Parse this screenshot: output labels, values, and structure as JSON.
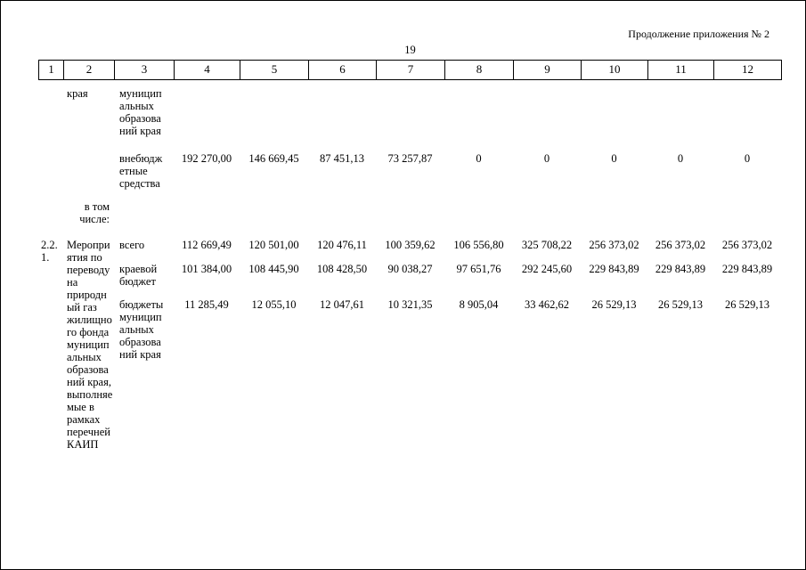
{
  "page": {
    "header_note": "Продолжение приложения № 2",
    "page_number": "19"
  },
  "table": {
    "columns": [
      "1",
      "2",
      "3",
      "4",
      "5",
      "6",
      "7",
      "8",
      "9",
      "10",
      "11",
      "12"
    ],
    "row_a": {
      "col2": "края",
      "col3": "муницип\nальных\nобразова\nний края"
    },
    "row_b": {
      "col3": "внебюдж\nетные\nсредства",
      "values": [
        "192 270,00",
        "146 669,45",
        "87 451,13",
        "73 257,87",
        "0",
        "0",
        "0",
        "0",
        "0"
      ]
    },
    "row_c": {
      "col2": "в том\nчисле:"
    },
    "row_d": {
      "col1": "2.2.\n1.",
      "col2": "Меропри\nятия по\nпереводу\nна\nприродн\nый газ\nжилищно\nго фонда\nмуницип\nальных\nобразова\nний края,\nвыполняе\nмые в\nрамках\nперечней\nКАИП",
      "subrows": [
        {
          "label": "всего",
          "values": [
            "112 669,49",
            "120 501,00",
            "120 476,11",
            "100 359,62",
            "106 556,80",
            "325 708,22",
            "256 373,02",
            "256 373,02",
            "256 373,02"
          ]
        },
        {
          "label": "краевой\nбюджет",
          "values": [
            "101 384,00",
            "108 445,90",
            "108 428,50",
            "90 038,27",
            "97 651,76",
            "292 245,60",
            "229 843,89",
            "229 843,89",
            "229 843,89"
          ]
        },
        {
          "label": "бюджеты\nмуницип\nальных\nобразова\nний края",
          "values": [
            "11 285,49",
            "12 055,10",
            "12 047,61",
            "10 321,35",
            "8 905,04",
            "33 462,62",
            "26 529,13",
            "26 529,13",
            "26 529,13"
          ]
        }
      ]
    }
  }
}
